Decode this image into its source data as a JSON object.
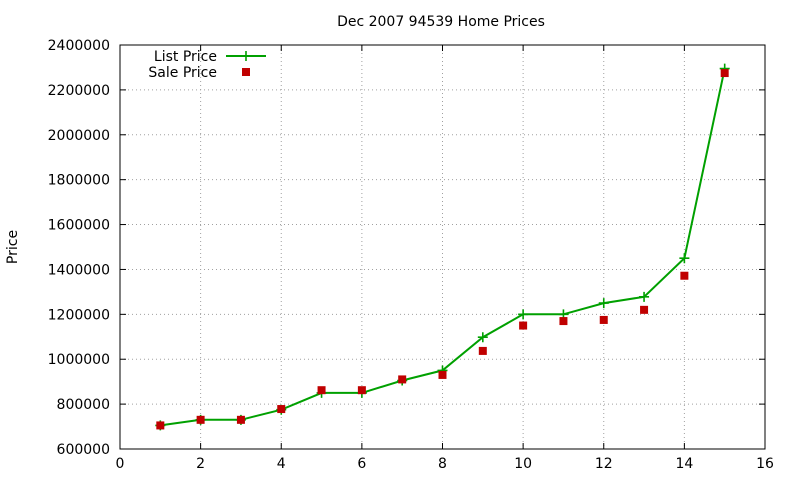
{
  "chart_data": {
    "type": "line",
    "title": "Dec 2007 94539 Home Prices",
    "xlabel": "",
    "ylabel": "Price",
    "xlim": [
      0,
      16
    ],
    "ylim": [
      600000,
      2400000
    ],
    "x_ticks": [
      "0",
      "2",
      "4",
      "6",
      "8",
      "10",
      "12",
      "14",
      "16"
    ],
    "y_ticks": [
      "600000",
      "800000",
      "1000000",
      "1200000",
      "1400000",
      "1600000",
      "1800000",
      "2000000",
      "2200000",
      "2400000"
    ],
    "grid": true,
    "legend_position": "top-left",
    "series": [
      {
        "name": "List Price",
        "style": "line-plus",
        "color": "#00a000",
        "points": [
          [
            1,
            705000
          ],
          [
            2,
            730000
          ],
          [
            3,
            730000
          ],
          [
            4,
            775000
          ],
          [
            5,
            850000
          ],
          [
            6,
            850000
          ],
          [
            7,
            905000
          ],
          [
            8,
            950000
          ],
          [
            9,
            1098000
          ],
          [
            10,
            1200000
          ],
          [
            11,
            1200000
          ],
          [
            12,
            1250000
          ],
          [
            13,
            1278000
          ],
          [
            14,
            1450000
          ],
          [
            15,
            2295000
          ]
        ]
      },
      {
        "name": "Sale Price",
        "style": "square-points",
        "color": "#c00000",
        "points": [
          [
            1,
            705000
          ],
          [
            2,
            730000
          ],
          [
            3,
            730000
          ],
          [
            4,
            778000
          ],
          [
            5,
            862000
          ],
          [
            6,
            862000
          ],
          [
            7,
            910000
          ],
          [
            8,
            930000
          ],
          [
            9,
            1037000
          ],
          [
            10,
            1150000
          ],
          [
            11,
            1170000
          ],
          [
            12,
            1175000
          ],
          [
            13,
            1220000
          ],
          [
            14,
            1372000
          ],
          [
            15,
            2275000
          ]
        ]
      }
    ]
  }
}
